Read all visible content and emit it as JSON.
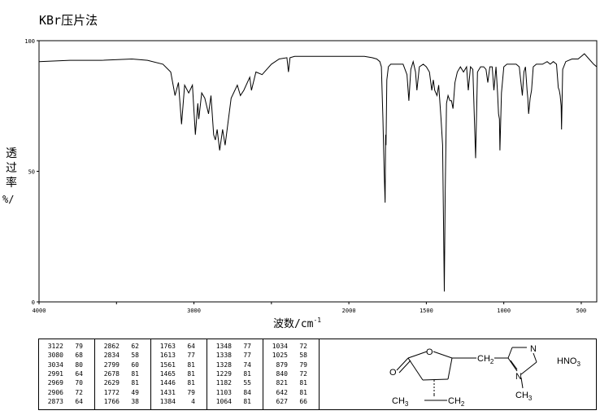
{
  "page": {
    "title": "KBr压片法"
  },
  "chart_data": {
    "type": "line",
    "xlabel": "波数/cm",
    "xlabel_sup": "-1",
    "ylabel": "透过率 %/",
    "ylabel_lines": [
      "透",
      "过",
      "率",
      "%/"
    ],
    "xlim": [
      4000,
      400
    ],
    "ylim": [
      0,
      100
    ],
    "x_ticks": [
      4000,
      3000,
      2000,
      1500,
      1000,
      500
    ],
    "x_tick_labels": [
      "4000",
      "3000",
      "2000",
      "1500",
      "1000",
      "500"
    ],
    "y_ticks": [
      0,
      50,
      100
    ],
    "y_tick_labels": [
      "0",
      "50",
      "100"
    ],
    "grid": false,
    "series": [
      {
        "x": [
          4000,
          3800,
          3600,
          3400,
          3300,
          3200,
          3150,
          3122,
          3100,
          3080,
          3060,
          3034,
          3010,
          2991,
          2975,
          2969,
          2950,
          2930,
          2906,
          2890,
          2873,
          2862,
          2850,
          2834,
          2815,
          2799,
          2760,
          2720,
          2700,
          2678,
          2640,
          2629,
          2600,
          2560,
          2500,
          2450,
          2400,
          2390,
          2380,
          2350,
          2200,
          2000,
          1900,
          1850,
          1820,
          1800,
          1790,
          1780,
          1772,
          1766,
          1763,
          1760,
          1755,
          1745,
          1730,
          1710,
          1680,
          1650,
          1625,
          1613,
          1600,
          1585,
          1570,
          1561,
          1545,
          1520,
          1500,
          1480,
          1465,
          1455,
          1446,
          1431,
          1420,
          1405,
          1395,
          1384,
          1378,
          1370,
          1360,
          1348,
          1338,
          1328,
          1315,
          1300,
          1280,
          1260,
          1240,
          1229,
          1215,
          1200,
          1182,
          1170,
          1150,
          1130,
          1115,
          1103,
          1090,
          1075,
          1064,
          1050,
          1040,
          1034,
          1028,
          1025,
          1015,
          1000,
          980,
          960,
          940,
          920,
          900,
          880,
          870,
          860,
          850,
          845,
          840,
          830,
          821,
          810,
          790,
          770,
          750,
          720,
          700,
          680,
          660,
          648,
          642,
          636,
          630,
          627,
          620,
          600,
          560,
          520,
          480,
          450,
          420,
          400
        ],
        "y": [
          92,
          92.5,
          92.5,
          93,
          92.5,
          91,
          88,
          79,
          84,
          68,
          83,
          80,
          83,
          64,
          76,
          70,
          80,
          78,
          72,
          79,
          64,
          62,
          66,
          58,
          66,
          60,
          78,
          83,
          79,
          81,
          86,
          81,
          88,
          87,
          91,
          93,
          93.5,
          88,
          93.5,
          94,
          94,
          94,
          94,
          93.5,
          93,
          92,
          90,
          70,
          49,
          38,
          64,
          60,
          85,
          90,
          91,
          91,
          91,
          91,
          87,
          77,
          89,
          92,
          88,
          81,
          90,
          91,
          90,
          88,
          81,
          85,
          81,
          79,
          83,
          70,
          60,
          4,
          42,
          76,
          79,
          77,
          77,
          74,
          84,
          88,
          90,
          88,
          90,
          81,
          90,
          89,
          55,
          88,
          90,
          90,
          89,
          84,
          90,
          90,
          81,
          90,
          80,
          72,
          70,
          58,
          80,
          90,
          91,
          91,
          91,
          91,
          90,
          79,
          88,
          90,
          81,
          78,
          72,
          78,
          81,
          90,
          91,
          91,
          91,
          92,
          91,
          92,
          91,
          82,
          81,
          79,
          75,
          66,
          89,
          92,
          93,
          93,
          95,
          93,
          91,
          90
        ]
      }
    ]
  },
  "peak_table": {
    "columns": [
      [
        [
          "3122",
          "79"
        ],
        [
          "3080",
          "68"
        ],
        [
          "3034",
          "80"
        ],
        [
          "2991",
          "64"
        ],
        [
          "2969",
          "70"
        ],
        [
          "2906",
          "72"
        ],
        [
          "2873",
          "64"
        ]
      ],
      [
        [
          "2862",
          "62"
        ],
        [
          "2834",
          "58"
        ],
        [
          "2799",
          "60"
        ],
        [
          "2678",
          "81"
        ],
        [
          "2629",
          "81"
        ],
        [
          "1772",
          "49"
        ],
        [
          "1766",
          "38"
        ]
      ],
      [
        [
          "1763",
          "64"
        ],
        [
          "1613",
          "77"
        ],
        [
          "1561",
          "81"
        ],
        [
          "1465",
          "81"
        ],
        [
          "1446",
          "81"
        ],
        [
          "1431",
          "79"
        ],
        [
          "1384",
          "4"
        ]
      ],
      [
        [
          "1348",
          "77"
        ],
        [
          "1338",
          "77"
        ],
        [
          "1328",
          "74"
        ],
        [
          "1229",
          "81"
        ],
        [
          "1182",
          "55"
        ],
        [
          "1103",
          "84"
        ],
        [
          "1064",
          "81"
        ]
      ],
      [
        [
          "1034",
          "72"
        ],
        [
          "1025",
          "58"
        ],
        [
          "879",
          "79"
        ],
        [
          "840",
          "72"
        ],
        [
          "821",
          "81"
        ],
        [
          "642",
          "81"
        ],
        [
          "627",
          "66"
        ]
      ]
    ]
  },
  "structure": {
    "atom_O_ring": "O",
    "atom_O_carbonyl": "O",
    "ch2_link": "CH",
    "ch2_link_sub": "2",
    "atom_N_top": "N",
    "atom_N_bottom": "N",
    "methyl": "CH",
    "methyl_sub": "3",
    "ethyl_ch3": "CH",
    "ethyl_ch3_sub": "3",
    "ethyl_ch2": "CH",
    "ethyl_ch2_sub": "2",
    "salt": "HNO",
    "salt_sub": "3"
  }
}
